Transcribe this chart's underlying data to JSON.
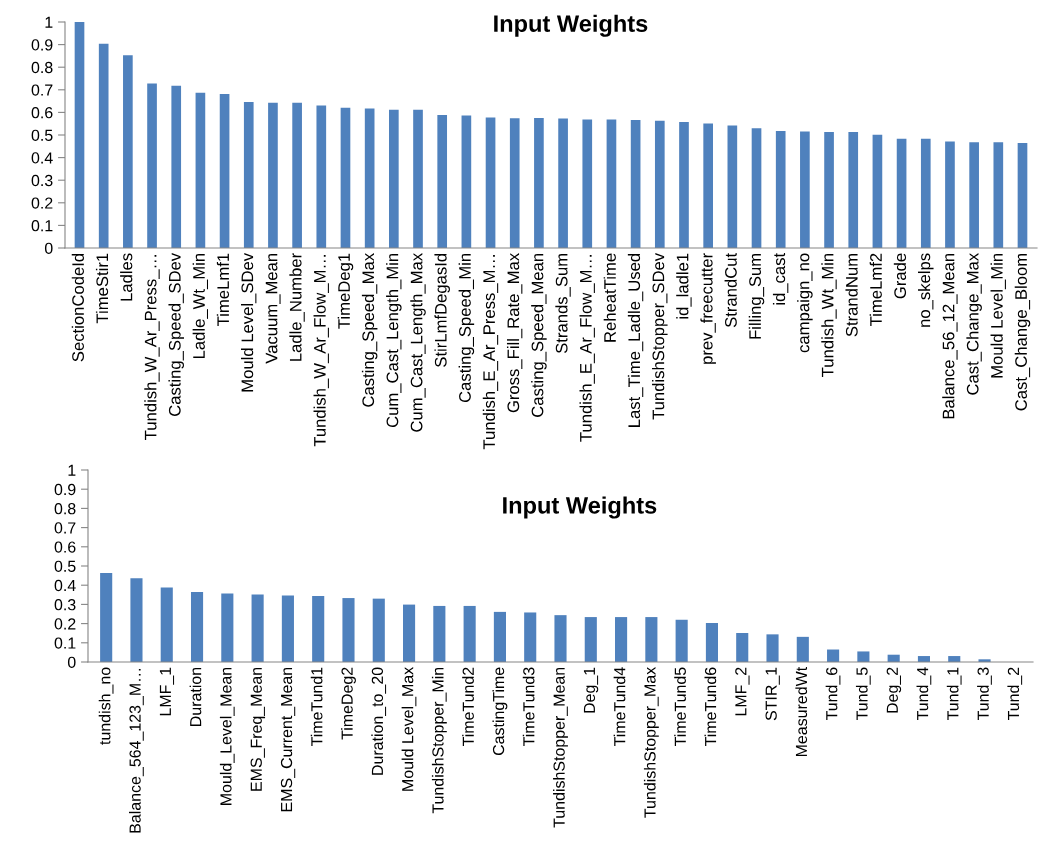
{
  "chart_data": [
    {
      "type": "bar",
      "title": "Input Weights",
      "color": "#4f81bd",
      "categories": [
        "SectionCodeId",
        "TimeStir1",
        "Ladles",
        "Tundish_W_Ar_Press_…",
        "Casting_Speed_SDev",
        "Ladle_Wt_Min",
        "TimeLmf1",
        "Mould Level_SDev",
        "Vacuum_Mean",
        "Ladle_Number",
        "Tundish_W_Ar_Flow_M…",
        "TimeDeg1",
        "Casting_Speed_Max",
        "Cum_Cast_Length_Min",
        "Cum_Cast_Length_Max",
        "StirLmfDegasId",
        "Casting_Speed_Min",
        "Tundish_E_Ar_Press_M…",
        "Gross_Fill_Rate_Max",
        "Casting_Speed_Mean",
        "Strands_Sum",
        "Tundish_E_Ar_Flow_M…",
        "ReheatTime",
        "Last_Time_Ladle_Used",
        "TundishStopper_SDev",
        "id_ladle1",
        "prev_freecutter",
        "StrandCut",
        "Filling_Sum",
        "id_cast",
        "campaign_no",
        "Tundish_Wt_Min",
        "StrandNum",
        "TimeLmf2",
        "Grade",
        "no_skelps",
        "Balance_56_12_Mean",
        "Cast_Change_Max",
        "Mould Level_Min",
        "Cast_Change_Bloom"
      ],
      "values": [
        1.0,
        0.904,
        0.853,
        0.728,
        0.718,
        0.687,
        0.681,
        0.646,
        0.643,
        0.643,
        0.631,
        0.621,
        0.617,
        0.612,
        0.612,
        0.589,
        0.586,
        0.577,
        0.574,
        0.575,
        0.573,
        0.569,
        0.569,
        0.566,
        0.563,
        0.557,
        0.551,
        0.542,
        0.53,
        0.518,
        0.516,
        0.513,
        0.513,
        0.501,
        0.483,
        0.483,
        0.471,
        0.468,
        0.468,
        0.465
      ],
      "ylim": [
        0,
        1
      ],
      "yticks": [
        0,
        0.1,
        0.2,
        0.3,
        0.4,
        0.5,
        0.6,
        0.7,
        0.8,
        0.9,
        1
      ],
      "grid": false
    },
    {
      "type": "bar",
      "title": "Input Weights",
      "color": "#4f81bd",
      "categories": [
        "tundish_no",
        "Balance_564_123_M…",
        "LMF_1",
        "Duration",
        "Mould_Level_Mean",
        "EMS_Freq_Mean",
        "EMS_Current_Mean",
        "TimeTund1",
        "TimeDeg2",
        "Duration_to_20",
        "Mould Level_Max",
        "TundishStopper_Min",
        "TimeTund2",
        "CastingTime",
        "TimeTund3",
        "TundishStopper_Mean",
        "Deg_1",
        "TimeTund4",
        "TundishStopper_Max",
        "TimeTund5",
        "TimeTund6",
        "LMF_2",
        "STIR_1",
        "MeasuredWt",
        "Tund_6",
        "Tund_5",
        "Deg_2",
        "Tund_4",
        "Tund_1",
        "Tund_3",
        "Tund_2"
      ],
      "values": [
        0.464,
        0.436,
        0.388,
        0.364,
        0.357,
        0.351,
        0.347,
        0.344,
        0.333,
        0.33,
        0.299,
        0.292,
        0.292,
        0.261,
        0.258,
        0.244,
        0.234,
        0.234,
        0.234,
        0.22,
        0.203,
        0.151,
        0.144,
        0.131,
        0.065,
        0.055,
        0.038,
        0.031,
        0.031,
        0.014,
        0
      ],
      "ylim": [
        0,
        1
      ],
      "yticks": [
        0,
        0.1,
        0.2,
        0.3,
        0.4,
        0.5,
        0.6,
        0.7,
        0.8,
        0.9,
        1
      ],
      "grid": false
    }
  ]
}
